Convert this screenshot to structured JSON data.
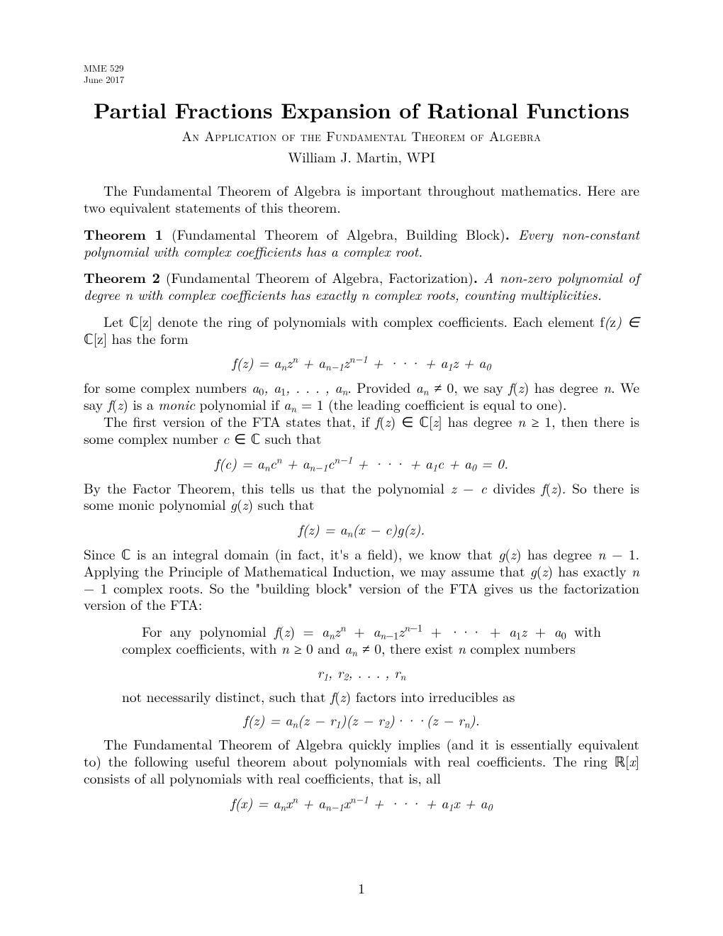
{
  "header": {
    "course": "MME 529",
    "date": "June 2017"
  },
  "title": "Partial Fractions Expansion of Rational Functions",
  "subtitle": "An Application of the Fundamental Theorem of Algebra",
  "author": "William J. Martin, WPI",
  "intro": "The Fundamental Theorem of Algebra is important throughout mathematics. Here are two equivalent statements of this theorem.",
  "theorem1": {
    "label": "Theorem 1",
    "name": "(Fundamental Theorem of Algebra, Building Block)",
    "statement": "Every non-constant polynomial with complex coefficients has a complex root."
  },
  "theorem2": {
    "label": "Theorem 2",
    "name": "(Fundamental Theorem of Algebra, Factorization)",
    "statement": "A non-zero polynomial of degree n with complex coefficients has exactly n complex roots, counting multiplicities."
  },
  "p_let_pre": "Let ",
  "p_let_mid": " denote the ring of polynomials with complex coefficients. Each element ",
  "p_let_post": " has the form",
  "eq1": "f(z) = aₙzⁿ + aₙ₋₁zⁿ⁻¹ + ··· + a₁z + a₀",
  "p_forsome_a": "for some complex numbers ",
  "p_forsome_b": ". Provided ",
  "p_forsome_c": ", we say ",
  "p_forsome_d": " has degree ",
  "p_forsome_e": ". We say ",
  "p_forsome_f": " is a ",
  "monic": "monic",
  "p_forsome_g": " polynomial if ",
  "p_forsome_h": " (the leading coefficient is equal to one).",
  "p_firstver_a": "The first version of the FTA states that, if ",
  "p_firstver_b": " has degree ",
  "p_firstver_c": ", then there is some complex number ",
  "p_firstver_d": " such that",
  "eq2": "f(c) = aₙcⁿ + aₙ₋₁cⁿ⁻¹ + ··· + a₁c + a₀ = 0.",
  "p_factor_a": "By the Factor Theorem, this tells us that the polynomial ",
  "p_factor_b": " divides ",
  "p_factor_c": ". So there is some monic polynomial ",
  "p_factor_d": " such that",
  "eq3": "f(z) = aₙ(x − c)g(z).",
  "p_since_a": "Since ",
  "p_since_b": " is an integral domain (in fact, it's a field), we know that ",
  "p_since_c": " has degree ",
  "p_since_d": ". Applying the Principle of Mathematical Induction, we may assume that ",
  "p_since_e": " has exactly ",
  "p_since_f": " complex roots. So the \"building block\" version of the FTA gives us the factorization version of the FTA:",
  "q_a": "For any polynomial ",
  "q_b": " with complex coefficients, with ",
  "q_c": " and ",
  "q_d": ", there exist ",
  "q_e": " complex numbers",
  "eq4": "r₁, r₂, . . . , rₙ",
  "q_f": "not necessarily distinct, such that ",
  "q_g": " factors into irreducibles as",
  "eq5": "f(z) = aₙ(z − r₁)(z − r₂)···(z − rₙ).",
  "p_final_a": "The Fundamental Theorem of Algebra quickly implies (and it is essentially equivalent to) the following useful theorem about polynomials with real coefficients. The ring ",
  "p_final_b": " consists of all polynomials with real coefficients, that is, all",
  "eq6": "f(x) = aₙxⁿ + aₙ₋₁xⁿ⁻¹ + ··· + a₁x + a₀",
  "page_number": "1",
  "math": {
    "Cz": "ℂ[z]",
    "fz_in_Cz": "f(z) ∈ ℂ[z]",
    "fz": "f(z)",
    "gz": "g(z)",
    "a0_to_an": "a₀, a₁, . . . , aₙ",
    "an_ne_0": "aₙ ≠ 0",
    "n": "n",
    "an_eq_1": "aₙ = 1",
    "n_ge_1": "n ≥ 1",
    "c_in_C": "c ∈ ℂ",
    "z_minus_c": "z − c",
    "C": "ℂ",
    "n_minus_1": "n − 1",
    "poly_long": "f(z) = aₙzⁿ + aₙ₋₁zⁿ⁻¹ + ··· + a₁z + a₀",
    "n_ge_0": "n ≥ 0",
    "Rx": "ℝ[x]"
  }
}
